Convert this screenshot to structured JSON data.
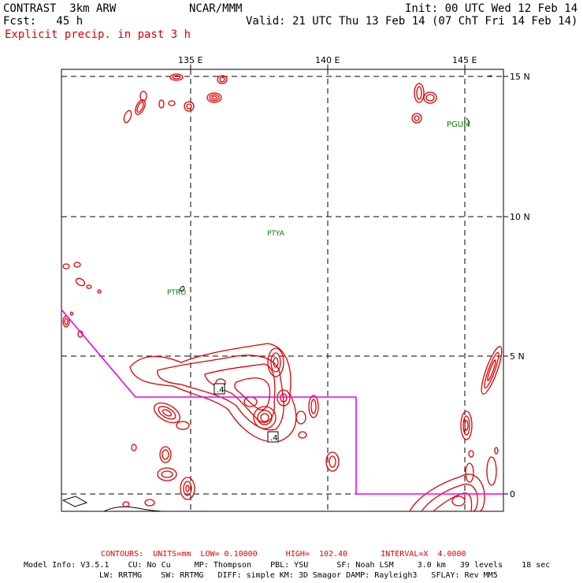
{
  "header": {
    "model": "CONTRAST  3km ARW",
    "org": "NCAR/MMM",
    "init": "Init: 00 UTC Wed 12 Feb 14",
    "fcst": "Fcst:   45 h",
    "valid": "Valid: 21 UTC Thu 13 Feb 14 (07 ChT Fri 14 Feb 14)",
    "field": "Explicit precip. in past 3 h"
  },
  "axes": {
    "lon_labels": [
      "135 E",
      "140 E",
      "145 E"
    ],
    "lat_labels": [
      "15 N",
      "10 N",
      "5 N",
      "0"
    ]
  },
  "stations": [
    "PGUM",
    "PTYA",
    "PTRO"
  ],
  "contour_labels": [
    ".4",
    ".4"
  ],
  "colors": {
    "precip_contour": "#e00000",
    "flight_track": "#ee00ee",
    "station_text": "#007a00",
    "coastline": "#000000",
    "grid": "#000000"
  },
  "footer": {
    "contours": "CONTOURS:  UNITS=mm  LOW= 0.10000      HIGH=  102.40       INTERVAL=X  4.0000",
    "info1": "Model Info: V3.5.1    CU: No Cu     MP: Thompson    PBL: YSU      SF: Noah LSM     3.0 km   39 levels    18 sec",
    "info2": "LW: RRTMG    SW: RRTMG   DIFF: simple KM: 3D Smagor DAMP: Rayleigh3   SFLAY: Rev MM5"
  }
}
